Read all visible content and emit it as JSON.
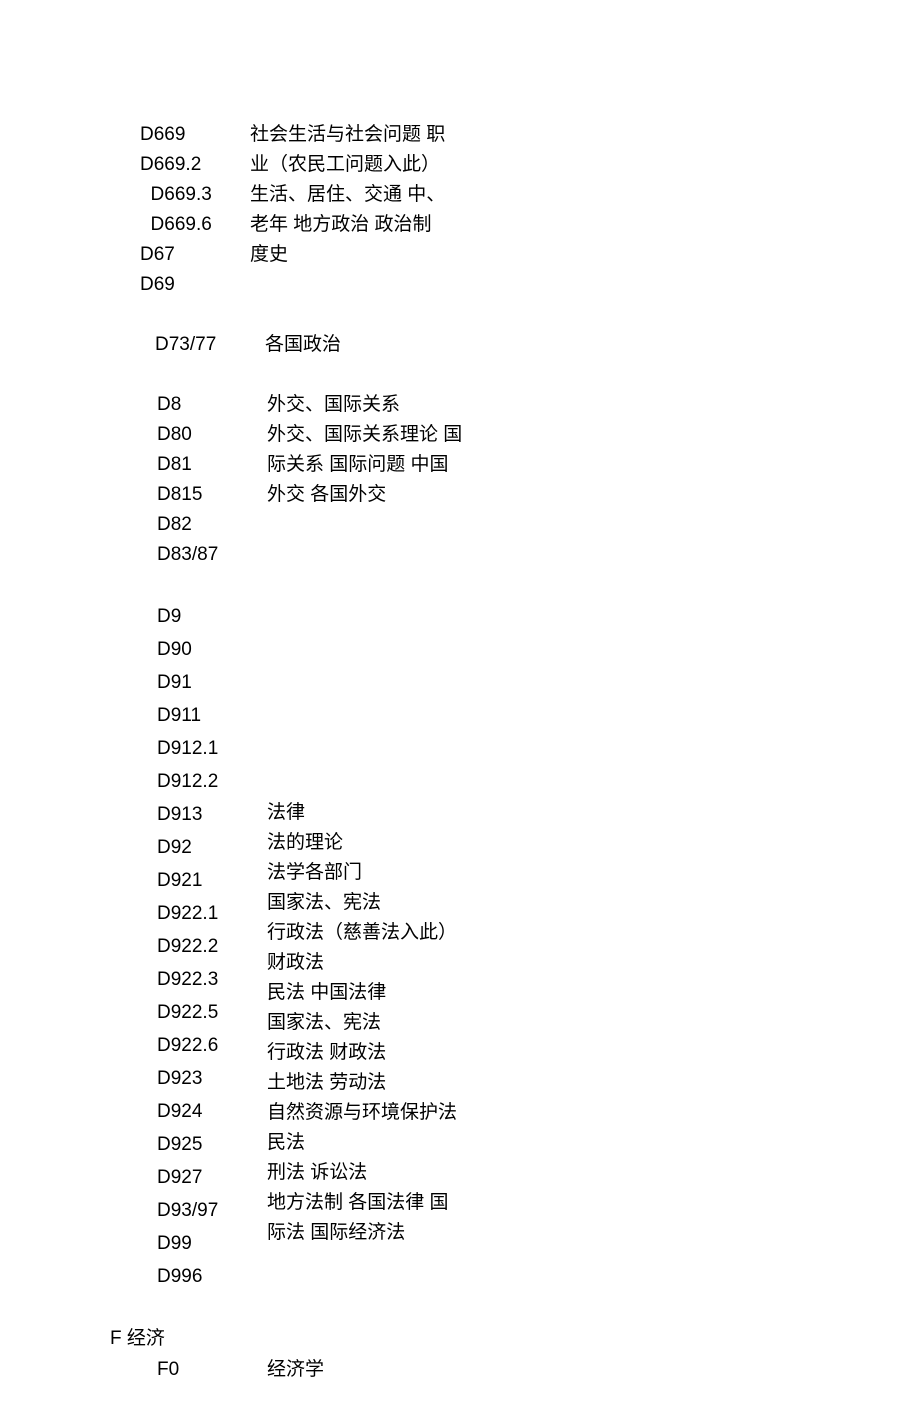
{
  "blocks": [
    {
      "codes": [
        "D669",
        "D669.2",
        "  D669.3",
        "  D669.6",
        "D67",
        "D69"
      ],
      "desc": "社会生活与社会问题 职业（农民工问题入此）\n生活、居住、交通 中、老年  地方政治 政治制度史",
      "code_indent": 0
    },
    {
      "codes": [
        "D73/77"
      ],
      "desc": "各国政治",
      "code_indent": 15,
      "valign_center": true
    },
    {
      "codes": [
        "D8",
        "D80",
        "D81",
        "D815",
        "D82",
        "D83/87"
      ],
      "desc": "外交、国际关系\n外交、国际关系理论 国际关系  国际问题 中国外交  各国外交",
      "code_indent": 17
    },
    {
      "codes": [
        "D9",
        "D90",
        "D91",
        "D911",
        "D912.1",
        "D912.2",
        "D913",
        "D92",
        "D921",
        "D922.1",
        "D922.2",
        "D922.3",
        "D922.5",
        "D922.6",
        "D923",
        "D924",
        "D925",
        "D927",
        "D93/97",
        "D99",
        "D996"
      ],
      "desc_pre_blank": 6,
      "desc": "法律\n法的理论\n法学各部门\n国家法、宪法\n行政法（慈善法入此）  财政法\n民法  中国法律\n国家法、宪法\n行政法  财政法\n土地法  劳动法\n自然资源与环境保护法  民法\n刑法  诉讼法\n地方法制  各国法律 国际法  国际经济法",
      "code_indent": 17,
      "code_lh": 33
    }
  ],
  "section": "F 经济",
  "last": {
    "code": "F0",
    "desc": "经济学"
  }
}
